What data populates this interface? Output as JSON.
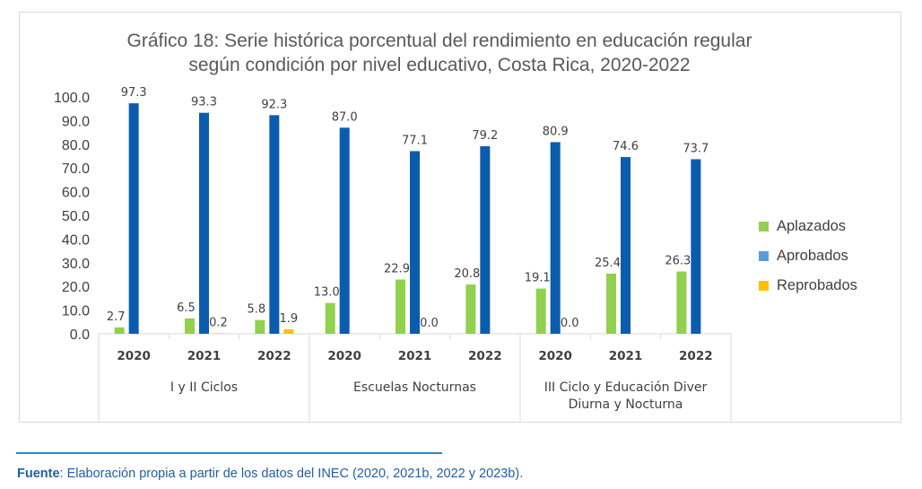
{
  "title": {
    "line1": "Gráfico 18: Serie histórica porcentual del rendimiento en educación regular",
    "line2": "según condición por nivel educativo,  Costa Rica, 2020-2022"
  },
  "source": {
    "label": "Fuente",
    "text": ": Elaboración propia a partir de los datos del INEC (2020, 2021b, 2022 y 2023b)."
  },
  "chart_data": {
    "type": "bar",
    "title": "Gráfico 18: Serie histórica porcentual del rendimiento en educación regular según condición por nivel educativo,  Costa Rica, 2020-2022",
    "ylim": [
      0,
      100
    ],
    "yticks": [
      "0.0",
      "10.0",
      "20.0",
      "30.0",
      "40.0",
      "50.0",
      "60.0",
      "70.0",
      "80.0",
      "90.0",
      "100.0"
    ],
    "grid": false,
    "legend_position": "right",
    "groups": [
      {
        "label": [
          "I y II Ciclos"
        ],
        "years": [
          "2020",
          "2021",
          "2022"
        ]
      },
      {
        "label": [
          "Escuelas Nocturnas"
        ],
        "years": [
          "2020",
          "2021",
          "2022"
        ]
      },
      {
        "label": [
          "III Ciclo y Educación Diver",
          "Diurna y Nocturna"
        ],
        "years": [
          "2020",
          "2021",
          "2022"
        ]
      }
    ],
    "series": [
      {
        "name": "Aplazados",
        "color": "#92d050",
        "values": [
          2.7,
          6.5,
          5.8,
          13.0,
          22.9,
          20.8,
          19.1,
          25.4,
          26.3
        ],
        "labels": [
          "2.7",
          "6.5",
          "5.8",
          "13.0",
          "22.9",
          "20.8",
          "19.1",
          "25.4",
          "26.3"
        ]
      },
      {
        "name": "Aprobados",
        "color": "#0b5cad",
        "values": [
          97.3,
          93.3,
          92.3,
          87.0,
          77.1,
          79.2,
          80.9,
          74.6,
          73.7
        ],
        "labels": [
          "97.3",
          "93.3",
          "92.3",
          "87.0",
          "77.1",
          "79.2",
          "80.9",
          "74.6",
          "73.7"
        ]
      },
      {
        "name": "Reprobados",
        "color": "#ffc000",
        "values": [
          0,
          0.2,
          1.9,
          null,
          0.0,
          null,
          0.0,
          null,
          null
        ],
        "labels": [
          null,
          "0.2",
          "1.9",
          null,
          "0.0",
          null,
          "0.0",
          null,
          null
        ]
      }
    ],
    "legend_colors": {
      "Aplazados": "#92d050",
      "Aprobados": "#5b9bd5",
      "Reprobados": "#ffc000"
    }
  }
}
